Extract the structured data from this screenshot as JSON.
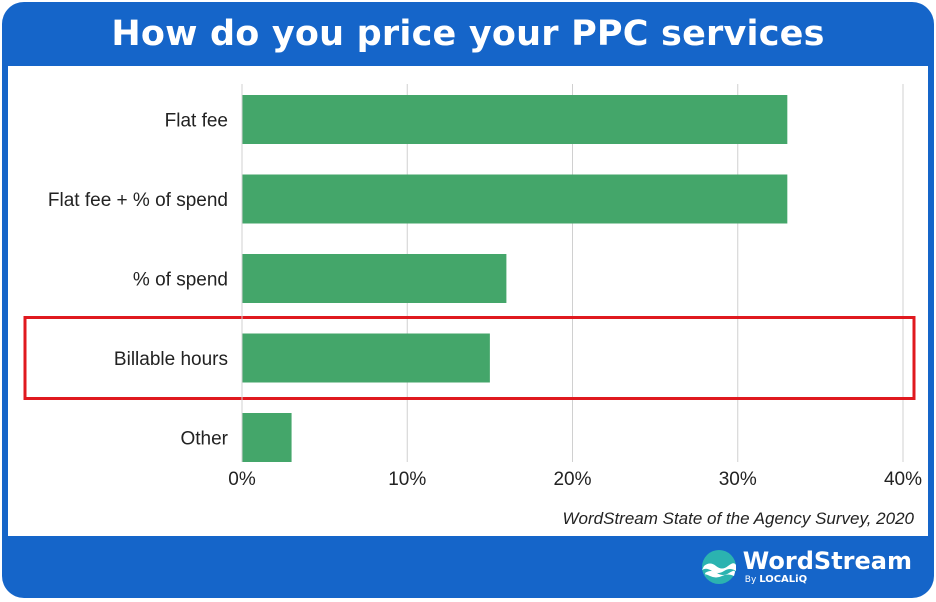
{
  "title": "How do you price your PPC services",
  "source": "WordStream State of the Agency Survey, 2020",
  "logo": {
    "name": "WordStream",
    "by": "By",
    "sub": "LOCALiQ"
  },
  "colors": {
    "frame": "#1565c9",
    "bar": "#44a66a",
    "highlight": "#e0191f",
    "grid": "#d0d0d0"
  },
  "highlight": "Billable hours",
  "chart_data": {
    "type": "bar",
    "orientation": "horizontal",
    "categories": [
      "Flat fee",
      "Flat fee + % of spend",
      "% of spend",
      "Billable hours",
      "Other"
    ],
    "values": [
      33,
      33,
      16,
      15,
      3
    ],
    "unit": "%",
    "xlim": [
      0,
      40
    ],
    "ticks": [
      "0%",
      "10%",
      "20%",
      "30%",
      "40%"
    ],
    "grid": true
  }
}
